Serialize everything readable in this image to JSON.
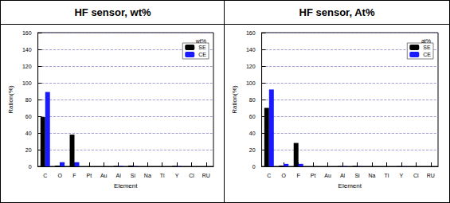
{
  "chart_data": [
    {
      "type": "bar",
      "title": "HF sensor, wt%",
      "subtitle": "wt%",
      "x_label": "Element",
      "y_label": "Ration(%)",
      "categories": [
        "C",
        "O",
        "F",
        "Pt",
        "Au",
        "Al",
        "Si",
        "Na",
        "Tl",
        "Y",
        "Cl",
        "RU"
      ],
      "series": [
        {
          "name": "SE",
          "color": "#000000",
          "values": [
            59,
            1,
            38,
            0,
            0,
            0.5,
            1,
            0,
            0,
            0.5,
            0,
            0
          ]
        },
        {
          "name": "CE",
          "color": "#1a1aff",
          "values": [
            89,
            5,
            5,
            0,
            0,
            0.5,
            0.3,
            0,
            0,
            0.3,
            0,
            0
          ]
        }
      ],
      "ylim": [
        0,
        160
      ],
      "yticks": [
        0,
        20,
        40,
        60,
        80,
        100,
        120,
        140,
        160
      ],
      "grid": true,
      "legend": "upper right"
    },
    {
      "type": "bar",
      "title": "HF sensor, At%",
      "subtitle": "at%",
      "x_label": "Element",
      "y_label": "Ration(%)",
      "categories": [
        "C",
        "O",
        "F",
        "Pt",
        "Au",
        "Al",
        "Si",
        "Na",
        "Tl",
        "Y",
        "Cl",
        "RU"
      ],
      "series": [
        {
          "name": "SE",
          "color": "#000000",
          "values": [
            70,
            1,
            28,
            0,
            0,
            0.3,
            0.5,
            0,
            0,
            0.2,
            0,
            0
          ]
        },
        {
          "name": "CE",
          "color": "#1a1aff",
          "values": [
            92,
            3,
            3,
            0,
            0,
            0.3,
            0.2,
            0,
            0,
            0.1,
            0,
            0
          ]
        }
      ],
      "ylim": [
        0,
        160
      ],
      "yticks": [
        0,
        20,
        40,
        60,
        80,
        100,
        120,
        140,
        160
      ],
      "grid": true,
      "legend": "upper right"
    }
  ]
}
